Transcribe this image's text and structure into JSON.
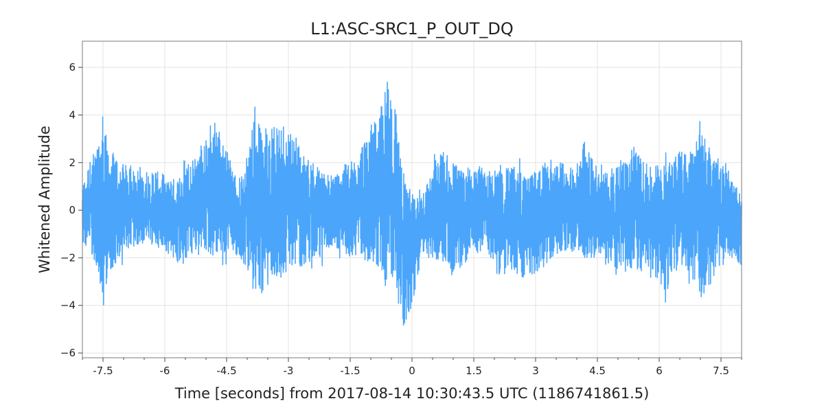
{
  "chart_data": {
    "type": "line",
    "title": "L1:ASC-SRC1_P_OUT_DQ",
    "xlabel": "Time [seconds] from 2017-08-14 10:30:43.5 UTC (1186741861.5)",
    "ylabel": "Whitened Amplitude",
    "xlim": [
      -8,
      8
    ],
    "ylim": [
      -6.2,
      7.1
    ],
    "x_ticks": [
      -7.5,
      -6,
      -4.5,
      -3,
      -1.5,
      0,
      1.5,
      3,
      4.5,
      6,
      7.5
    ],
    "x_tick_labels": [
      "-7.5",
      "-6",
      "-4.5",
      "-3",
      "-1.5",
      "0",
      "1.5",
      "3",
      "4.5",
      "6",
      "7.5"
    ],
    "y_ticks": [
      -6,
      -4,
      -2,
      0,
      2,
      4,
      6
    ],
    "y_tick_labels": [
      "−6",
      "−4",
      "−2",
      "0",
      "2",
      "4",
      "6"
    ],
    "grid": true,
    "series": [
      {
        "color": "#4ba6fb",
        "envelope": {
          "x": [
            -8,
            -7.8,
            -7.6,
            -7.5,
            -7.4,
            -7.2,
            -7.0,
            -6.8,
            -6.6,
            -6.4,
            -6.2,
            -6.0,
            -5.8,
            -5.6,
            -5.4,
            -5.2,
            -5.0,
            -4.8,
            -4.6,
            -4.4,
            -4.2,
            -4.0,
            -3.8,
            -3.6,
            -3.4,
            -3.2,
            -3.0,
            -2.8,
            -2.6,
            -2.4,
            -2.2,
            -2.0,
            -1.8,
            -1.6,
            -1.4,
            -1.2,
            -1.0,
            -0.8,
            -0.6,
            -0.4,
            -0.2,
            0.0,
            0.2,
            0.4,
            0.6,
            0.8,
            1.0,
            1.2,
            1.4,
            1.6,
            1.8,
            2.0,
            2.2,
            2.4,
            2.6,
            2.8,
            3.0,
            3.2,
            3.4,
            3.6,
            3.8,
            4.0,
            4.2,
            4.4,
            4.6,
            4.8,
            5.0,
            5.2,
            5.4,
            5.6,
            5.8,
            6.0,
            6.2,
            6.4,
            6.6,
            6.8,
            7.0,
            7.2,
            7.4,
            7.6,
            7.8,
            8.0
          ],
          "upper": [
            1.3,
            2.6,
            3.5,
            5.5,
            3.6,
            2.7,
            2.4,
            2.0,
            2.3,
            1.9,
            2.1,
            1.8,
            1.7,
            2.0,
            2.6,
            2.8,
            3.5,
            4.5,
            3.6,
            2.5,
            1.7,
            2.8,
            4.6,
            4.2,
            4.4,
            4.5,
            4.3,
            3.5,
            2.7,
            2.5,
            2.1,
            1.8,
            2.0,
            2.4,
            2.6,
            3.4,
            4.2,
            4.6,
            6.5,
            5.1,
            2.2,
            1.2,
            1.0,
            1.6,
            2.8,
            3.0,
            2.6,
            2.1,
            2.4,
            2.3,
            2.0,
            2.2,
            2.1,
            2.4,
            2.3,
            1.9,
            2.1,
            2.5,
            2.6,
            2.4,
            2.3,
            2.6,
            3.5,
            2.5,
            2.1,
            2.2,
            2.6,
            2.8,
            3.4,
            2.6,
            2.3,
            2.6,
            3.2,
            3.1,
            3.2,
            3.0,
            4.8,
            3.4,
            3.0,
            2.2,
            1.4,
            1.2
          ],
          "lower": [
            -1.6,
            -2.4,
            -3.2,
            -5.5,
            -3.4,
            -2.8,
            -2.2,
            -1.9,
            -1.8,
            -1.7,
            -1.9,
            -2.0,
            -2.6,
            -2.8,
            -2.6,
            -2.4,
            -2.3,
            -2.6,
            -2.6,
            -2.1,
            -2.5,
            -3.0,
            -4.4,
            -4.2,
            -4.0,
            -3.8,
            -3.3,
            -3.0,
            -2.8,
            -2.6,
            -2.4,
            -1.9,
            -2.1,
            -2.4,
            -2.5,
            -2.6,
            -2.8,
            -3.1,
            -4.0,
            -4.3,
            -5.6,
            -4.5,
            -2.7,
            -2.2,
            -2.6,
            -3.0,
            -3.2,
            -2.8,
            -2.5,
            -2.2,
            -2.2,
            -2.6,
            -3.2,
            -3.0,
            -3.3,
            -3.4,
            -3.2,
            -2.9,
            -2.4,
            -2.2,
            -2.1,
            -2.2,
            -2.6,
            -2.5,
            -2.3,
            -2.6,
            -3.0,
            -3.2,
            -3.0,
            -3.2,
            -3.4,
            -3.6,
            -4.2,
            -3.2,
            -3.0,
            -3.4,
            -4.8,
            -3.9,
            -3.2,
            -2.4,
            -2.3,
            -2.7
          ]
        }
      }
    ]
  }
}
